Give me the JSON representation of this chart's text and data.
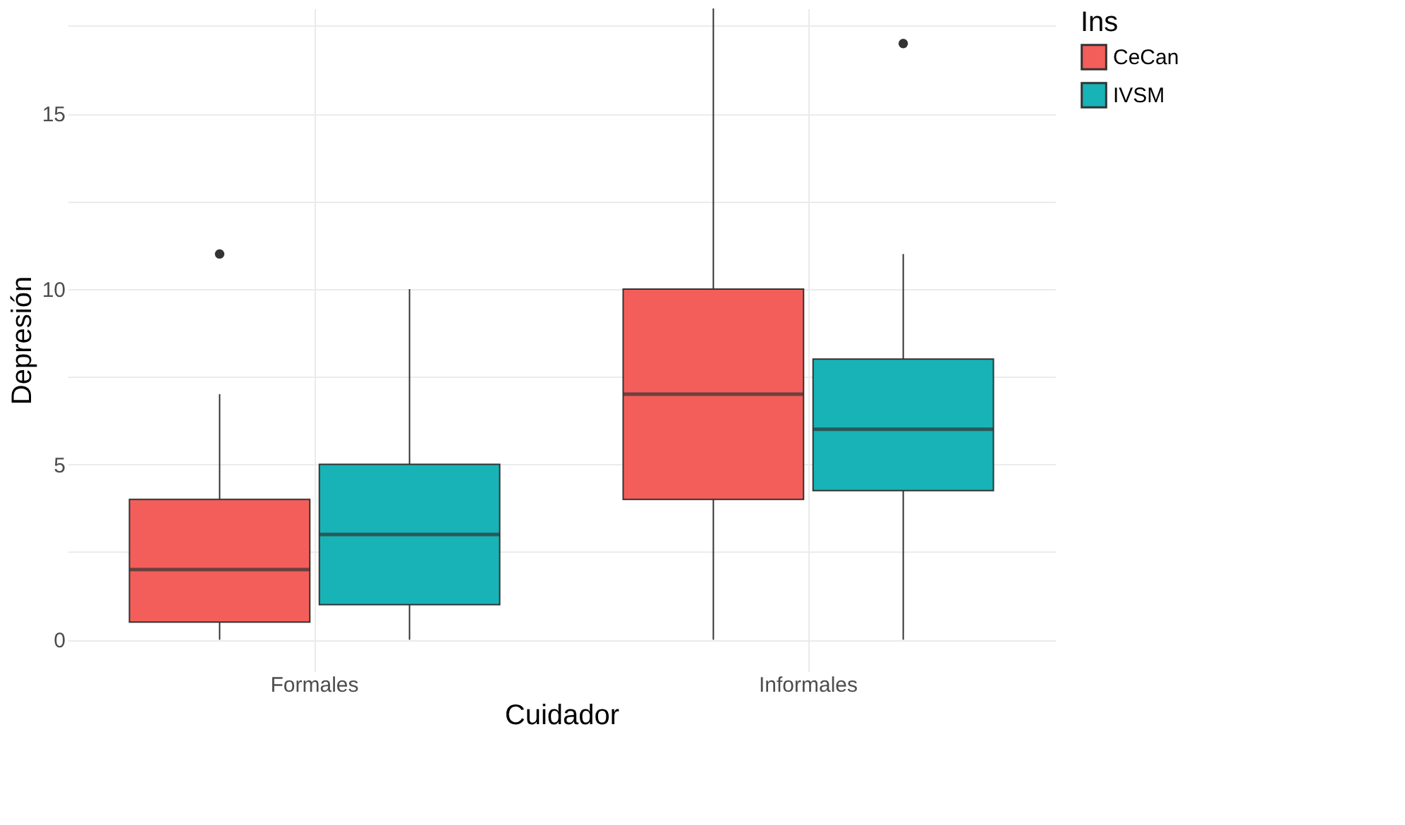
{
  "chart_data": {
    "type": "box",
    "xlabel": "Cuidador",
    "ylabel": "Depresión",
    "legend_title": "Ins",
    "legend": "right",
    "grid": true,
    "categories": [
      "Formales",
      "Informales"
    ],
    "ylim": [
      -0.9,
      18
    ],
    "yticks": [
      0,
      {
        "value": 2.5,
        "label": null
      },
      5,
      {
        "value": 7.5,
        "label": null
      },
      10,
      {
        "value": 12.5,
        "label": null
      },
      15,
      {
        "value": 17.5,
        "label": null
      }
    ],
    "series": [
      {
        "name": "CeCan",
        "color": "#f35e5a",
        "boxes": [
          {
            "low": 0,
            "q1": 0.5,
            "median": 2,
            "q3": 4,
            "high": 7,
            "outliers": [
              11
            ]
          },
          {
            "low": 0,
            "q1": 4,
            "median": 7,
            "q3": 10,
            "high": 18
          }
        ]
      },
      {
        "name": "IVSM",
        "color": "#17b3b6",
        "boxes": [
          {
            "low": 0,
            "q1": 1,
            "median": 3,
            "q3": 5,
            "high": 10
          },
          {
            "low": 0,
            "q1": 4.25,
            "median": 6,
            "q3": 8,
            "high": 11,
            "outliers": [
              17
            ]
          }
        ]
      }
    ]
  }
}
